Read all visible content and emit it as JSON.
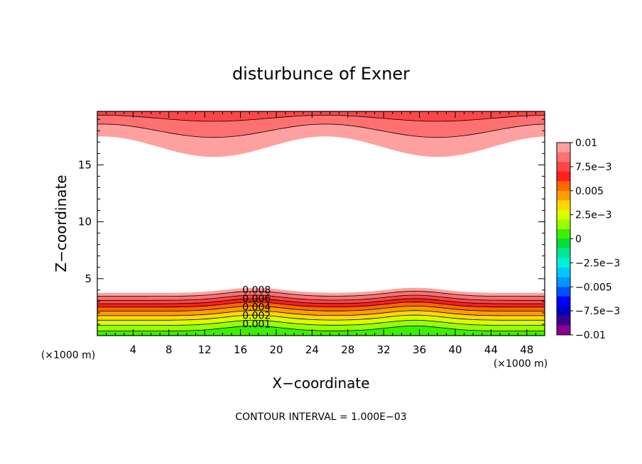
{
  "chart_data": {
    "type": "heatmap",
    "title": "disturbunce of Exner",
    "xlabel": "X−coordinate",
    "ylabel": "Z−coordinate",
    "x_unit": "(×1000 m)",
    "y_unit": "(×1000 m)",
    "xlim": [
      0,
      50
    ],
    "ylim": [
      0,
      19.7
    ],
    "x_ticks": [
      4,
      8,
      12,
      16,
      20,
      24,
      28,
      32,
      36,
      40,
      44,
      48
    ],
    "y_ticks": [
      5,
      10,
      15
    ],
    "footer": "CONTOUR INTERVAL = 1.000E−03",
    "contour_interval": 0.001,
    "contour_labels": [
      "0.008",
      "0.006",
      "0.004",
      "0.002",
      "0.001"
    ],
    "colorbar": {
      "tick_labels": [
        "0.01",
        "7.5e−3",
        "0.005",
        "2.5e−3",
        "0",
        "−2.5e−3",
        "−0.005",
        "−7.5e−3",
        "−0.01"
      ],
      "tick_values": [
        0.01,
        0.0075,
        0.005,
        0.0025,
        0,
        -0.0025,
        -0.005,
        -0.0075,
        -0.01
      ],
      "levels": [
        {
          "min": 0.009,
          "max": 0.01,
          "color": "#ffa0a0"
        },
        {
          "min": 0.008,
          "max": 0.009,
          "color": "#ff7070"
        },
        {
          "min": 0.007,
          "max": 0.008,
          "color": "#ff4646"
        },
        {
          "min": 0.006,
          "max": 0.007,
          "color": "#ff1e1e"
        },
        {
          "min": 0.005,
          "max": 0.006,
          "color": "#ff6600"
        },
        {
          "min": 0.004,
          "max": 0.005,
          "color": "#ff9d00"
        },
        {
          "min": 0.003,
          "max": 0.004,
          "color": "#ffd800"
        },
        {
          "min": 0.002,
          "max": 0.003,
          "color": "#d8ff00"
        },
        {
          "min": 0.001,
          "max": 0.002,
          "color": "#9aff00"
        },
        {
          "min": 0.0,
          "max": 0.001,
          "color": "#3cf000"
        },
        {
          "min": -0.001,
          "max": 0.0,
          "color": "#00e03c"
        },
        {
          "min": -0.002,
          "max": -0.001,
          "color": "#00e896"
        },
        {
          "min": -0.003,
          "max": -0.002,
          "color": "#00f0d8"
        },
        {
          "min": -0.004,
          "max": -0.003,
          "color": "#00c8ff"
        },
        {
          "min": -0.005,
          "max": -0.004,
          "color": "#0096ff"
        },
        {
          "min": -0.006,
          "max": -0.005,
          "color": "#0050ff"
        },
        {
          "min": -0.007,
          "max": -0.006,
          "color": "#0000ff"
        },
        {
          "min": -0.008,
          "max": -0.007,
          "color": "#0000c0"
        },
        {
          "min": -0.009,
          "max": -0.008,
          "color": "#3c0090"
        },
        {
          "min": -0.01,
          "max": -0.009,
          "color": "#8c0090"
        }
      ]
    },
    "upper_bands": [
      {
        "color": "#ffa0a0",
        "base": 16.6
      },
      {
        "color": "#ff7070",
        "base": 18.0
      },
      {
        "color": "#ff4646",
        "base": 19.1
      }
    ],
    "lower_bands": [
      {
        "color": "#3cf000",
        "top": 0.4
      },
      {
        "color": "#9aff00",
        "top": 0.9
      },
      {
        "color": "#d8ff00",
        "top": 1.35
      },
      {
        "color": "#ffd800",
        "top": 1.75
      },
      {
        "color": "#ff9d00",
        "top": 2.15
      },
      {
        "color": "#ff6600",
        "top": 2.5
      },
      {
        "color": "#ff1e1e",
        "top": 2.8
      },
      {
        "color": "#ff4646",
        "top": 3.1
      },
      {
        "color": "#ff7070",
        "top": 3.45
      },
      {
        "color": "#ffa0a0",
        "top": 3.75
      }
    ],
    "lower_undulation": {
      "amplitude": 0.45,
      "centers": [
        17.5,
        35.5
      ],
      "width": 4.5
    },
    "upper_undulation": {
      "amplitude": 0.9,
      "period": 25,
      "phase": 25.5
    }
  }
}
